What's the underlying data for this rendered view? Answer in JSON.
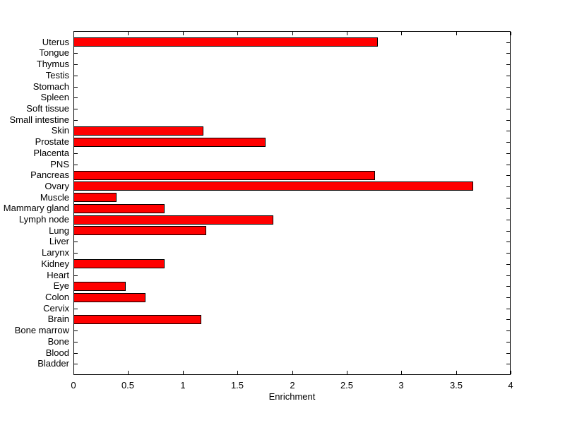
{
  "figure": {
    "background_color": "#ffffff",
    "axes_color": "#000000"
  },
  "chart_data": {
    "type": "bar",
    "orientation": "horizontal",
    "title": "",
    "xlabel": "Enrichment",
    "ylabel": "",
    "xlim": [
      0,
      4
    ],
    "x_ticks": [
      0,
      0.5,
      1,
      1.5,
      2,
      2.5,
      3,
      3.5,
      4
    ],
    "x_tick_labels": [
      "0",
      "0.5",
      "1",
      "1.5",
      "2",
      "2.5",
      "3",
      "3.5",
      "4"
    ],
    "grid": false,
    "legend": "none",
    "bar_color": "#ff0000",
    "bar_edge_color": "#000000",
    "category_order": "top-to-bottom",
    "categories": [
      "Uterus",
      "Tongue",
      "Thymus",
      "Testis",
      "Stomach",
      "Spleen",
      "Soft tissue",
      "Small intestine",
      "Skin",
      "Prostate",
      "Placenta",
      "PNS",
      "Pancreas",
      "Ovary",
      "Muscle",
      "Mammary gland",
      "Lymph node",
      "Lung",
      "Liver",
      "Larynx",
      "Kidney",
      "Heart",
      "Eye",
      "Colon",
      "Cervix",
      "Brain",
      "Bone marrow",
      "Bone",
      "Blood",
      "Bladder"
    ],
    "values": [
      2.78,
      0,
      0,
      0,
      0,
      0,
      0,
      0,
      1.18,
      1.75,
      0,
      0,
      2.75,
      3.65,
      0.39,
      0.83,
      1.82,
      1.21,
      0,
      0,
      0.83,
      0,
      0.47,
      0.65,
      0,
      1.16,
      0,
      0,
      0,
      0
    ]
  }
}
